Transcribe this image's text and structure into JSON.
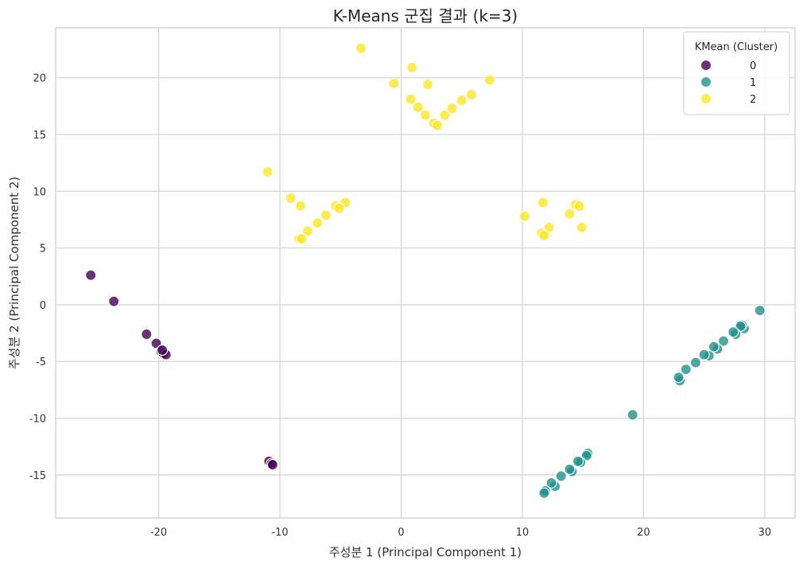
{
  "chart_data": {
    "type": "scatter",
    "title": "K-Means 군집 결과 (k=3)",
    "xlabel": "주성분 1 (Principal Component 1)",
    "ylabel": "주성분 2 (Principal Component 2)",
    "xlim": [
      -28.5,
      32.5
    ],
    "ylim": [
      -18.8,
      24.4
    ],
    "x_ticks": [
      -20,
      -10,
      0,
      10,
      20,
      30
    ],
    "y_ticks": [
      -15,
      -10,
      -5,
      0,
      5,
      10,
      15,
      20
    ],
    "grid": true,
    "legend": {
      "title": "KMean (Cluster)",
      "position": "top-right"
    },
    "series": [
      {
        "name": "0",
        "color": "#440154",
        "points": [
          [
            -25.6,
            2.6
          ],
          [
            -23.7,
            0.3
          ],
          [
            -21.0,
            -2.6
          ],
          [
            -20.2,
            -3.4
          ],
          [
            -19.8,
            -4.1
          ],
          [
            -19.6,
            -4.3
          ],
          [
            -19.4,
            -4.4
          ],
          [
            -19.7,
            -4.0
          ],
          [
            -10.9,
            -13.8
          ],
          [
            -10.7,
            -14.0
          ],
          [
            -10.6,
            -14.1
          ]
        ]
      },
      {
        "name": "1",
        "color": "#21918c",
        "points": [
          [
            29.6,
            -0.5
          ],
          [
            28.3,
            -2.1
          ],
          [
            28.1,
            -1.8
          ],
          [
            28.0,
            -1.9
          ],
          [
            27.6,
            -2.6
          ],
          [
            27.4,
            -2.4
          ],
          [
            26.6,
            -3.2
          ],
          [
            26.1,
            -3.9
          ],
          [
            25.8,
            -3.7
          ],
          [
            25.4,
            -4.5
          ],
          [
            25.0,
            -4.4
          ],
          [
            24.3,
            -5.1
          ],
          [
            23.5,
            -5.7
          ],
          [
            23.0,
            -6.7
          ],
          [
            22.9,
            -6.4
          ],
          [
            19.1,
            -9.7
          ],
          [
            15.4,
            -13.1
          ],
          [
            15.3,
            -13.3
          ],
          [
            14.8,
            -13.9
          ],
          [
            14.6,
            -13.8
          ],
          [
            14.1,
            -14.7
          ],
          [
            13.9,
            -14.5
          ],
          [
            13.2,
            -15.1
          ],
          [
            12.7,
            -16.0
          ],
          [
            12.4,
            -15.7
          ],
          [
            11.9,
            -16.4
          ],
          [
            11.8,
            -16.6
          ]
        ]
      },
      {
        "name": "2",
        "color": "#fde725",
        "points": [
          [
            -3.3,
            22.6
          ],
          [
            0.9,
            20.9
          ],
          [
            -0.6,
            19.5
          ],
          [
            2.2,
            19.4
          ],
          [
            7.3,
            19.8
          ],
          [
            5.8,
            18.5
          ],
          [
            5.0,
            18.0
          ],
          [
            0.8,
            18.1
          ],
          [
            1.4,
            17.4
          ],
          [
            4.2,
            17.3
          ],
          [
            3.6,
            16.7
          ],
          [
            2.0,
            16.7
          ],
          [
            2.7,
            16.0
          ],
          [
            3.0,
            15.8
          ],
          [
            -11.0,
            11.7
          ],
          [
            -9.1,
            9.4
          ],
          [
            -8.3,
            8.7
          ],
          [
            -4.6,
            9.0
          ],
          [
            -5.4,
            8.7
          ],
          [
            -5.1,
            8.5
          ],
          [
            -6.2,
            7.9
          ],
          [
            -6.9,
            7.2
          ],
          [
            -7.7,
            6.5
          ],
          [
            -8.4,
            5.8
          ],
          [
            -8.2,
            5.8
          ],
          [
            11.7,
            9.0
          ],
          [
            14.4,
            8.8
          ],
          [
            14.7,
            8.7
          ],
          [
            10.2,
            7.8
          ],
          [
            13.9,
            8.0
          ],
          [
            12.2,
            6.8
          ],
          [
            14.9,
            6.8
          ],
          [
            11.6,
            6.3
          ],
          [
            11.8,
            6.1
          ]
        ]
      }
    ]
  }
}
